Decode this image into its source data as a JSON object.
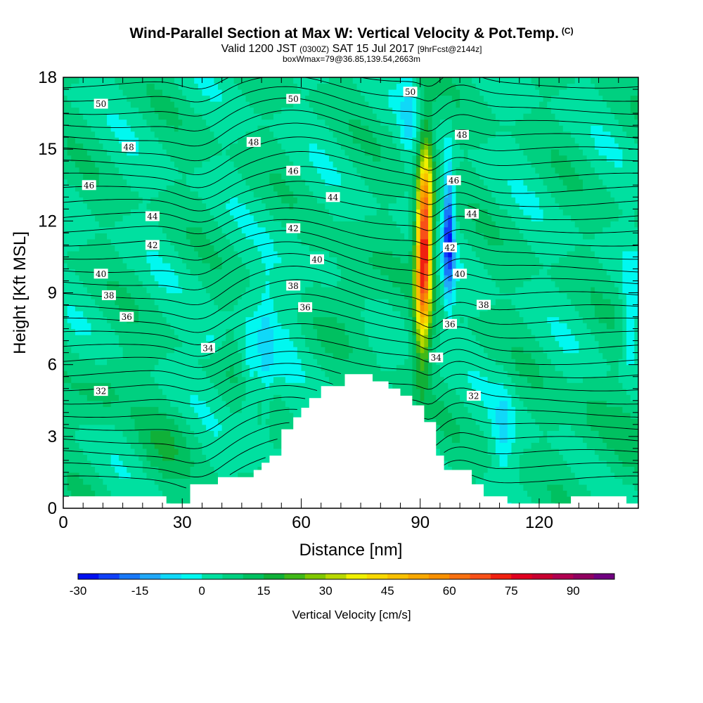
{
  "title": {
    "main": "Wind-Parallel Section at Max W: Vertical Velocity & Pot.Temp.",
    "copyright": "(C)",
    "valid_prefix": "Valid 1200 JST",
    "valid_utc": "(0300Z)",
    "valid_date": "SAT 15 Jul 2017",
    "forecast": "[9hrFcst@2144z]",
    "boxwmax": "boxWmax=79@36.85,139.54,2663m"
  },
  "chart_data": {
    "type": "heatmap",
    "xlabel": "Distance [nm]",
    "ylabel": "Height [Kft MSL]",
    "xlim": [
      0,
      145
    ],
    "ylim": [
      0,
      18
    ],
    "x_ticks": [
      0,
      30,
      60,
      90,
      120
    ],
    "y_ticks": [
      0,
      3,
      6,
      9,
      12,
      15,
      18
    ],
    "colorbar": {
      "title": "Vertical Velocity [cm/s]",
      "min": -30,
      "max": 100,
      "step": 5,
      "tick_values": [
        -30,
        -15,
        0,
        15,
        30,
        45,
        60,
        75,
        90
      ],
      "colors": [
        "#0010f0",
        "#1040f8",
        "#1878f8",
        "#20a8f8",
        "#10d8f8",
        "#00f8f0",
        "#00e0a0",
        "#00d080",
        "#00c060",
        "#10b038",
        "#40b818",
        "#80c800",
        "#b8d800",
        "#f0f000",
        "#f8d800",
        "#f8c000",
        "#f8a800",
        "#f89000",
        "#f87010",
        "#f85018",
        "#f02010",
        "#e00020",
        "#c80030",
        "#b00050",
        "#900060",
        "#700080"
      ]
    },
    "terrain": [
      [
        0,
        0.5
      ],
      [
        26,
        0.5
      ],
      [
        26,
        0.2
      ],
      [
        32,
        0.2
      ],
      [
        32,
        1.0
      ],
      [
        39,
        1.0
      ],
      [
        39,
        1.3
      ],
      [
        48,
        1.3
      ],
      [
        48,
        1.6
      ],
      [
        50,
        1.6
      ],
      [
        50,
        1.9
      ],
      [
        52,
        1.9
      ],
      [
        52,
        2.2
      ],
      [
        55,
        2.2
      ],
      [
        55,
        3.3
      ],
      [
        58,
        3.3
      ],
      [
        58,
        3.8
      ],
      [
        60,
        3.8
      ],
      [
        60,
        4.2
      ],
      [
        62,
        4.2
      ],
      [
        62,
        4.6
      ],
      [
        65,
        4.6
      ],
      [
        65,
        5.1
      ],
      [
        71,
        5.1
      ],
      [
        71,
        5.6
      ],
      [
        78,
        5.6
      ],
      [
        78,
        5.3
      ],
      [
        82,
        5.3
      ],
      [
        82,
        5.0
      ],
      [
        85,
        5.0
      ],
      [
        85,
        4.7
      ],
      [
        88,
        4.7
      ],
      [
        88,
        4.3
      ],
      [
        91,
        4.3
      ],
      [
        91,
        3.6
      ],
      [
        94,
        3.6
      ],
      [
        94,
        2.2
      ],
      [
        96,
        2.2
      ],
      [
        96,
        1.6
      ],
      [
        103,
        1.6
      ],
      [
        103,
        1.0
      ],
      [
        106,
        1.0
      ],
      [
        106,
        0.5
      ],
      [
        112,
        0.5
      ],
      [
        112,
        0.2
      ],
      [
        128,
        0.2
      ],
      [
        128,
        0.5
      ],
      [
        142,
        0.5
      ],
      [
        142,
        0.2
      ],
      [
        145,
        0.2
      ]
    ],
    "updraft": {
      "x_center": 90.7,
      "peak_height": 11.0,
      "wmax": 79
    },
    "theta_contours": [
      {
        "label": "32",
        "label_pos": [
          9.5,
          4.9
        ]
      },
      {
        "label": "32",
        "label_pos": [
          103.5,
          4.7
        ]
      },
      {
        "label": "34",
        "label_pos": [
          36.5,
          6.7
        ]
      },
      {
        "label": "34",
        "label_pos": [
          94,
          6.3
        ]
      },
      {
        "label": "36",
        "label_pos": [
          16,
          8.0
        ]
      },
      {
        "label": "36",
        "label_pos": [
          61,
          8.4
        ]
      },
      {
        "label": "36",
        "label_pos": [
          97.5,
          7.7
        ]
      },
      {
        "label": "38",
        "label_pos": [
          11.5,
          8.9
        ]
      },
      {
        "label": "38",
        "label_pos": [
          58,
          9.3
        ]
      },
      {
        "label": "38",
        "label_pos": [
          106,
          8.5
        ]
      },
      {
        "label": "40",
        "label_pos": [
          9.5,
          9.8
        ]
      },
      {
        "label": "40",
        "label_pos": [
          64,
          10.4
        ]
      },
      {
        "label": "40",
        "label_pos": [
          100,
          9.8
        ]
      },
      {
        "label": "42",
        "label_pos": [
          22.5,
          11.0
        ]
      },
      {
        "label": "42",
        "label_pos": [
          58,
          11.7
        ]
      },
      {
        "label": "42",
        "label_pos": [
          97.5,
          10.9
        ]
      },
      {
        "label": "44",
        "label_pos": [
          22.5,
          12.2
        ]
      },
      {
        "label": "44",
        "label_pos": [
          68,
          13.0
        ]
      },
      {
        "label": "44",
        "label_pos": [
          103,
          12.3
        ]
      },
      {
        "label": "46",
        "label_pos": [
          6.5,
          13.5
        ]
      },
      {
        "label": "46",
        "label_pos": [
          58,
          14.1
        ]
      },
      {
        "label": "46",
        "label_pos": [
          98.5,
          13.7
        ]
      },
      {
        "label": "48",
        "label_pos": [
          16.5,
          15.1
        ]
      },
      {
        "label": "48",
        "label_pos": [
          48,
          15.3
        ]
      },
      {
        "label": "48",
        "label_pos": [
          100.5,
          15.6
        ]
      },
      {
        "label": "50",
        "label_pos": [
          9.5,
          16.9
        ]
      },
      {
        "label": "50",
        "label_pos": [
          58,
          17.1
        ]
      },
      {
        "label": "50",
        "label_pos": [
          87.5,
          17.4
        ]
      }
    ]
  }
}
